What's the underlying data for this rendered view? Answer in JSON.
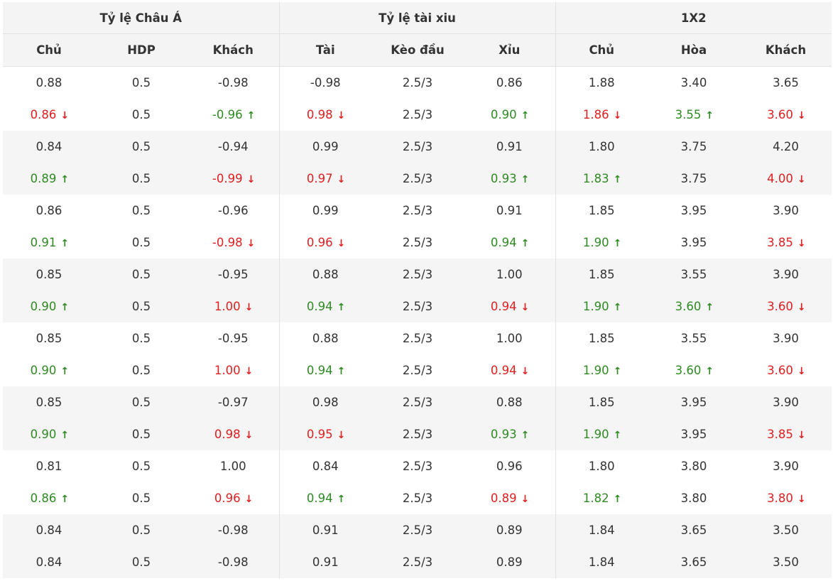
{
  "colors": {
    "up": "#2e8b22",
    "down": "#e02020",
    "header_bg": "#f4f4f4",
    "stripe_bg": "#f5f5f5"
  },
  "icons": {
    "up": "arrow-up-icon",
    "down": "arrow-down-icon"
  },
  "groups": [
    {
      "label": "Tỷ lệ Châu Á"
    },
    {
      "label": "Tỷ lệ tài xiu"
    },
    {
      "label": "1X2"
    }
  ],
  "columns": [
    "Chủ",
    "HDP",
    "Khách",
    "Tài",
    "Kèo đầu",
    "Xỉu",
    "Chủ",
    "Hòa",
    "Khách"
  ],
  "rows": [
    [
      {
        "v": "0.88",
        "t": ""
      },
      {
        "v": "0.5",
        "t": ""
      },
      {
        "v": "-0.98",
        "t": ""
      },
      {
        "v": "-0.98",
        "t": ""
      },
      {
        "v": "2.5/3",
        "t": ""
      },
      {
        "v": "0.86",
        "t": ""
      },
      {
        "v": "1.88",
        "t": ""
      },
      {
        "v": "3.40",
        "t": ""
      },
      {
        "v": "3.65",
        "t": ""
      }
    ],
    [
      {
        "v": "0.86",
        "t": "down"
      },
      {
        "v": "0.5",
        "t": ""
      },
      {
        "v": "-0.96",
        "t": "up"
      },
      {
        "v": "0.98",
        "t": "down"
      },
      {
        "v": "2.5/3",
        "t": ""
      },
      {
        "v": "0.90",
        "t": "up"
      },
      {
        "v": "1.86",
        "t": "down"
      },
      {
        "v": "3.55",
        "t": "up"
      },
      {
        "v": "3.60",
        "t": "down"
      }
    ],
    [
      {
        "v": "0.84",
        "t": ""
      },
      {
        "v": "0.5",
        "t": ""
      },
      {
        "v": "-0.94",
        "t": ""
      },
      {
        "v": "0.99",
        "t": ""
      },
      {
        "v": "2.5/3",
        "t": ""
      },
      {
        "v": "0.91",
        "t": ""
      },
      {
        "v": "1.80",
        "t": ""
      },
      {
        "v": "3.75",
        "t": ""
      },
      {
        "v": "4.20",
        "t": ""
      }
    ],
    [
      {
        "v": "0.89",
        "t": "up"
      },
      {
        "v": "0.5",
        "t": ""
      },
      {
        "v": "-0.99",
        "t": "down"
      },
      {
        "v": "0.97",
        "t": "down"
      },
      {
        "v": "2.5/3",
        "t": ""
      },
      {
        "v": "0.93",
        "t": "up"
      },
      {
        "v": "1.83",
        "t": "up"
      },
      {
        "v": "3.75",
        "t": ""
      },
      {
        "v": "4.00",
        "t": "down"
      }
    ],
    [
      {
        "v": "0.86",
        "t": ""
      },
      {
        "v": "0.5",
        "t": ""
      },
      {
        "v": "-0.96",
        "t": ""
      },
      {
        "v": "0.99",
        "t": ""
      },
      {
        "v": "2.5/3",
        "t": ""
      },
      {
        "v": "0.91",
        "t": ""
      },
      {
        "v": "1.85",
        "t": ""
      },
      {
        "v": "3.95",
        "t": ""
      },
      {
        "v": "3.90",
        "t": ""
      }
    ],
    [
      {
        "v": "0.91",
        "t": "up"
      },
      {
        "v": "0.5",
        "t": ""
      },
      {
        "v": "-0.98",
        "t": "down"
      },
      {
        "v": "0.96",
        "t": "down"
      },
      {
        "v": "2.5/3",
        "t": ""
      },
      {
        "v": "0.94",
        "t": "up"
      },
      {
        "v": "1.90",
        "t": "up"
      },
      {
        "v": "3.95",
        "t": ""
      },
      {
        "v": "3.85",
        "t": "down"
      }
    ],
    [
      {
        "v": "0.85",
        "t": ""
      },
      {
        "v": "0.5",
        "t": ""
      },
      {
        "v": "-0.95",
        "t": ""
      },
      {
        "v": "0.88",
        "t": ""
      },
      {
        "v": "2.5/3",
        "t": ""
      },
      {
        "v": "1.00",
        "t": ""
      },
      {
        "v": "1.85",
        "t": ""
      },
      {
        "v": "3.55",
        "t": ""
      },
      {
        "v": "3.90",
        "t": ""
      }
    ],
    [
      {
        "v": "0.90",
        "t": "up"
      },
      {
        "v": "0.5",
        "t": ""
      },
      {
        "v": "1.00",
        "t": "down"
      },
      {
        "v": "0.94",
        "t": "up"
      },
      {
        "v": "2.5/3",
        "t": ""
      },
      {
        "v": "0.94",
        "t": "down"
      },
      {
        "v": "1.90",
        "t": "up"
      },
      {
        "v": "3.60",
        "t": "up"
      },
      {
        "v": "3.60",
        "t": "down"
      }
    ],
    [
      {
        "v": "0.85",
        "t": ""
      },
      {
        "v": "0.5",
        "t": ""
      },
      {
        "v": "-0.95",
        "t": ""
      },
      {
        "v": "0.88",
        "t": ""
      },
      {
        "v": "2.5/3",
        "t": ""
      },
      {
        "v": "1.00",
        "t": ""
      },
      {
        "v": "1.85",
        "t": ""
      },
      {
        "v": "3.55",
        "t": ""
      },
      {
        "v": "3.90",
        "t": ""
      }
    ],
    [
      {
        "v": "0.90",
        "t": "up"
      },
      {
        "v": "0.5",
        "t": ""
      },
      {
        "v": "1.00",
        "t": "down"
      },
      {
        "v": "0.94",
        "t": "up"
      },
      {
        "v": "2.5/3",
        "t": ""
      },
      {
        "v": "0.94",
        "t": "down"
      },
      {
        "v": "1.90",
        "t": "up"
      },
      {
        "v": "3.60",
        "t": "up"
      },
      {
        "v": "3.60",
        "t": "down"
      }
    ],
    [
      {
        "v": "0.85",
        "t": ""
      },
      {
        "v": "0.5",
        "t": ""
      },
      {
        "v": "-0.97",
        "t": ""
      },
      {
        "v": "0.98",
        "t": ""
      },
      {
        "v": "2.5/3",
        "t": ""
      },
      {
        "v": "0.88",
        "t": ""
      },
      {
        "v": "1.85",
        "t": ""
      },
      {
        "v": "3.95",
        "t": ""
      },
      {
        "v": "3.90",
        "t": ""
      }
    ],
    [
      {
        "v": "0.90",
        "t": "up"
      },
      {
        "v": "0.5",
        "t": ""
      },
      {
        "v": "0.98",
        "t": "down"
      },
      {
        "v": "0.95",
        "t": "down"
      },
      {
        "v": "2.5/3",
        "t": ""
      },
      {
        "v": "0.93",
        "t": "up"
      },
      {
        "v": "1.90",
        "t": "up"
      },
      {
        "v": "3.95",
        "t": ""
      },
      {
        "v": "3.85",
        "t": "down"
      }
    ],
    [
      {
        "v": "0.81",
        "t": ""
      },
      {
        "v": "0.5",
        "t": ""
      },
      {
        "v": "1.00",
        "t": ""
      },
      {
        "v": "0.84",
        "t": ""
      },
      {
        "v": "2.5/3",
        "t": ""
      },
      {
        "v": "0.96",
        "t": ""
      },
      {
        "v": "1.80",
        "t": ""
      },
      {
        "v": "3.80",
        "t": ""
      },
      {
        "v": "3.90",
        "t": ""
      }
    ],
    [
      {
        "v": "0.86",
        "t": "up"
      },
      {
        "v": "0.5",
        "t": ""
      },
      {
        "v": "0.96",
        "t": "down"
      },
      {
        "v": "0.94",
        "t": "up"
      },
      {
        "v": "2.5/3",
        "t": ""
      },
      {
        "v": "0.89",
        "t": "down"
      },
      {
        "v": "1.82",
        "t": "up"
      },
      {
        "v": "3.80",
        "t": ""
      },
      {
        "v": "3.80",
        "t": "down"
      }
    ],
    [
      {
        "v": "0.84",
        "t": ""
      },
      {
        "v": "0.5",
        "t": ""
      },
      {
        "v": "-0.98",
        "t": ""
      },
      {
        "v": "0.91",
        "t": ""
      },
      {
        "v": "2.5/3",
        "t": ""
      },
      {
        "v": "0.89",
        "t": ""
      },
      {
        "v": "1.84",
        "t": ""
      },
      {
        "v": "3.65",
        "t": ""
      },
      {
        "v": "3.50",
        "t": ""
      }
    ],
    [
      {
        "v": "0.84",
        "t": ""
      },
      {
        "v": "0.5",
        "t": ""
      },
      {
        "v": "-0.98",
        "t": ""
      },
      {
        "v": "0.91",
        "t": ""
      },
      {
        "v": "2.5/3",
        "t": ""
      },
      {
        "v": "0.89",
        "t": ""
      },
      {
        "v": "1.84",
        "t": ""
      },
      {
        "v": "3.65",
        "t": ""
      },
      {
        "v": "3.50",
        "t": ""
      }
    ]
  ]
}
